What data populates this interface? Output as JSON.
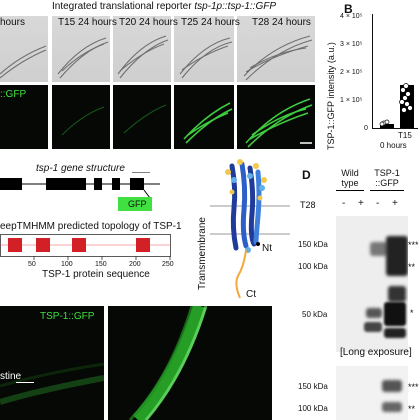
{
  "panelA": {
    "title": "Integrated translational reporter tsp-1p::tsp-1::GFP",
    "title_prefix": "Integrated translational reporter ",
    "title_italic": "tsp-1p::tsp-1::GFP",
    "times": [
      "hours",
      "T15 24 hours",
      "T20 24 hours",
      "T25 24 hours",
      "T28 24 hours"
    ],
    "fluor_label": "::GFP"
  },
  "panelB": {
    "letter": "B",
    "ylabel": "TSP-1::GFP intensity (a.u.)",
    "ytick_labels": [
      "4 × 10⁵",
      "3 × 10⁵",
      "2 × 10⁵",
      "1 × 10⁵",
      "0"
    ],
    "xtick_label": "T15",
    "xtick_sublabel": "0 hours",
    "chart_data": {
      "type": "bar",
      "categories": [
        "T15 0 hours",
        "T15"
      ],
      "values": [
        15000,
        150000
      ],
      "ylabel": "TSP-1::GFP intensity (a.u.)",
      "ylim": [
        0,
        400000
      ]
    }
  },
  "gene": {
    "title": "tsp-1 gene structure",
    "gfp_label": "GFP",
    "topology_title": "eepTMHMM predicted topology of TSP-1",
    "axis_ticks": [
      "50",
      "100",
      "150",
      "200",
      "250"
    ],
    "axis_label": "TSP-1 protein sequence"
  },
  "structure": {
    "ylabel": "Transmembrane",
    "nt_label": "Nt",
    "ct_label": "Ct"
  },
  "panelD": {
    "letter": "D",
    "col_wildtype": "Wild\ntype",
    "col_wildtype_line1": "Wild",
    "col_wildtype_line2": "type",
    "col_tsp": "TSP-1\n::GFP",
    "col_tsp_line1": "TSP-1",
    "col_tsp_line2": "::GFP",
    "row_label": "T28",
    "signs": [
      "-",
      "+",
      "-",
      "+"
    ],
    "markers": [
      "150 kDa",
      "100 kDa",
      "50 kDa",
      "150 kDa",
      "100 kDa"
    ],
    "annotations": [
      "***",
      "**",
      "*",
      "***",
      "**"
    ],
    "exposure_label": "[Long   exposure]"
  },
  "panelE": {
    "gfp_label": "TSP-1::GFP",
    "tissue_label": "stine"
  }
}
